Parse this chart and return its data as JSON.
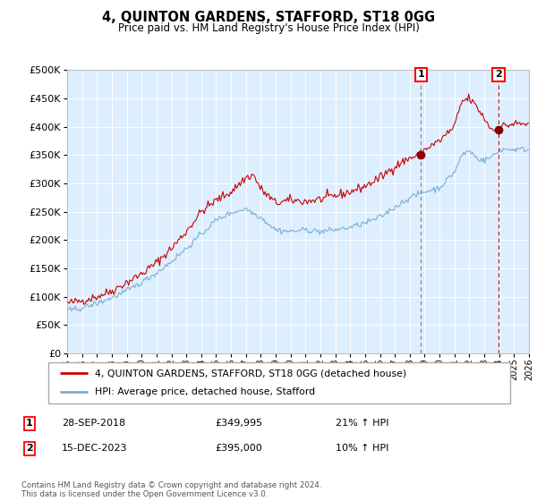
{
  "title": "4, QUINTON GARDENS, STAFFORD, ST18 0GG",
  "subtitle": "Price paid vs. HM Land Registry's House Price Index (HPI)",
  "ytick_vals": [
    0,
    50000,
    100000,
    150000,
    200000,
    250000,
    300000,
    350000,
    400000,
    450000,
    500000
  ],
  "ylabel_ticks": [
    "£0",
    "£50K",
    "£100K",
    "£150K",
    "£200K",
    "£250K",
    "£300K",
    "£350K",
    "£400K",
    "£450K",
    "£500K"
  ],
  "ylim": [
    0,
    500000
  ],
  "xlim_min": 1995,
  "xlim_max": 2026,
  "sale1_x": 2018.75,
  "sale1_y": 349995,
  "sale1_label": "1",
  "sale1_date": "28-SEP-2018",
  "sale1_price": "£349,995",
  "sale1_hpi": "21% ↑ HPI",
  "sale2_x": 2023.96,
  "sale2_y": 395000,
  "sale2_label": "2",
  "sale2_date": "15-DEC-2023",
  "sale2_price": "£395,000",
  "sale2_hpi": "10% ↑ HPI",
  "property_color": "#cc0000",
  "hpi_color": "#7bafd4",
  "bg_color": "#ddeeff",
  "legend1": "4, QUINTON GARDENS, STAFFORD, ST18 0GG (detached house)",
  "legend2": "HPI: Average price, detached house, Stafford",
  "footer": "Contains HM Land Registry data © Crown copyright and database right 2024.\nThis data is licensed under the Open Government Licence v3.0.",
  "prop_anchors_t": [
    1995,
    1996,
    1997,
    1998,
    1999,
    2000,
    2001,
    2002,
    2003,
    2004,
    2005,
    2006,
    2007,
    2007.5,
    2008,
    2009,
    2010,
    2011,
    2012,
    2013,
    2014,
    2015,
    2016,
    2017,
    2018,
    2018.75,
    2019,
    2020,
    2021,
    2021.5,
    2022,
    2022.5,
    2023,
    2023.5,
    2023.96,
    2024,
    2025
  ],
  "prop_anchors_v": [
    88000,
    93000,
    100000,
    110000,
    125000,
    140000,
    160000,
    185000,
    215000,
    250000,
    270000,
    285000,
    310000,
    315000,
    290000,
    265000,
    270000,
    268000,
    272000,
    278000,
    285000,
    295000,
    310000,
    330000,
    345000,
    349995,
    360000,
    375000,
    400000,
    445000,
    450000,
    435000,
    415000,
    395000,
    395000,
    400000,
    405000
  ],
  "hpi_anchors_t": [
    1995,
    1996,
    1997,
    1998,
    1999,
    2000,
    2001,
    2002,
    2003,
    2004,
    2005,
    2006,
    2007,
    2008,
    2009,
    2010,
    2011,
    2012,
    2013,
    2014,
    2015,
    2016,
    2017,
    2018,
    2019,
    2020,
    2021,
    2021.5,
    2022,
    2022.5,
    2023,
    2023.96,
    2024,
    2025
  ],
  "hpi_anchors_v": [
    75000,
    80000,
    88000,
    98000,
    110000,
    125000,
    142000,
    162000,
    185000,
    210000,
    235000,
    248000,
    255000,
    240000,
    218000,
    215000,
    218000,
    215000,
    218000,
    222000,
    230000,
    240000,
    258000,
    275000,
    285000,
    292000,
    320000,
    350000,
    358000,
    345000,
    340000,
    355000,
    360000,
    360000
  ]
}
